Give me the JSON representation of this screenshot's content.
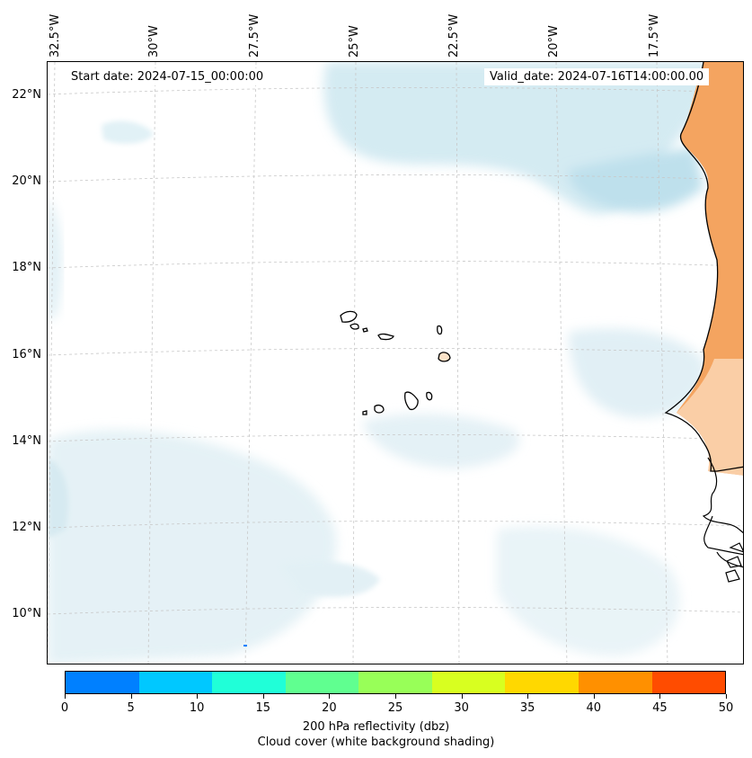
{
  "map": {
    "start_date": "Start date: 2024-07-15_00:00:00",
    "valid_date": "Valid_date: 2024-07-16T14:00:00.00",
    "lon_labels": [
      "32.5°W",
      "30°W",
      "27.5°W",
      "25°W",
      "22.5°W",
      "20°W",
      "17.5°W"
    ],
    "lat_labels": [
      "22°N",
      "20°N",
      "18°N",
      "16°N",
      "14°N",
      "12°N",
      "10°N"
    ],
    "region": "Cabo Verde / West Africa coast",
    "colors": {
      "land_fill": "#f4a460",
      "cloud_shading": "#cfe8f0",
      "coastline": "#000000",
      "gridline": "#c8c8c8"
    }
  },
  "colorbar": {
    "ticks": [
      "0",
      "5",
      "10",
      "15",
      "20",
      "25",
      "30",
      "35",
      "40",
      "45",
      "50"
    ],
    "colors": [
      "#0080ff",
      "#00c8ff",
      "#20ffd8",
      "#60ff90",
      "#98ff58",
      "#d8ff20",
      "#ffd800",
      "#ff9000",
      "#ff4c00"
    ],
    "label_line1": "200 hPa reflectivity (dbz)",
    "label_line2": "Cloud cover (white background shading)"
  }
}
